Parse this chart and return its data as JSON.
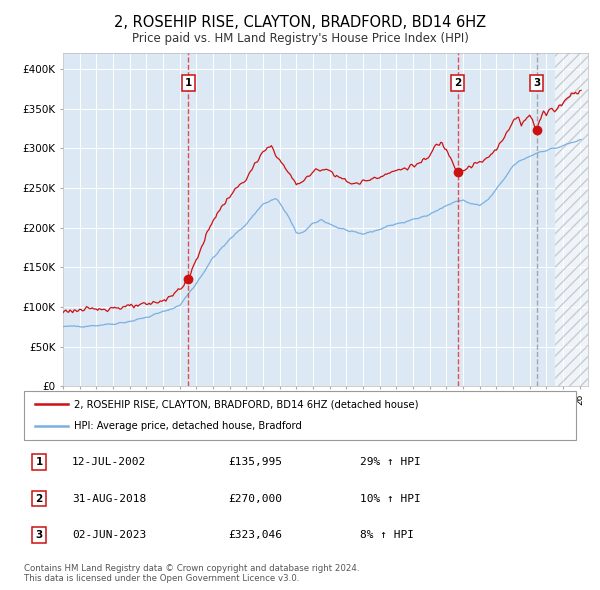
{
  "title": "2, ROSEHIP RISE, CLAYTON, BRADFORD, BD14 6HZ",
  "subtitle": "Price paid vs. HM Land Registry's House Price Index (HPI)",
  "title_fontsize": 10.5,
  "subtitle_fontsize": 8.5,
  "background_color": "#ffffff",
  "chart_bg_color": "#dde8f5",
  "ylim": [
    0,
    420000
  ],
  "yticks": [
    0,
    50000,
    100000,
    150000,
    200000,
    250000,
    300000,
    350000,
    400000
  ],
  "ytick_labels": [
    "£0",
    "£50K",
    "£100K",
    "£150K",
    "£200K",
    "£250K",
    "£300K",
    "£350K",
    "£400K"
  ],
  "xmin": 1995,
  "xmax": 2026.5,
  "sale1_date": 2002.53,
  "sale1_price": 135995,
  "sale1_label": "1",
  "sale1_vline_color": "#dd3333",
  "sale2_date": 2018.67,
  "sale2_price": 270000,
  "sale2_label": "2",
  "sale2_vline_color": "#dd3333",
  "sale3_date": 2023.42,
  "sale3_price": 323046,
  "sale3_label": "3",
  "sale3_vline_color": "#999999",
  "legend_entries": [
    "2, ROSEHIP RISE, CLAYTON, BRADFORD, BD14 6HZ (detached house)",
    "HPI: Average price, detached house, Bradford"
  ],
  "table_rows": [
    [
      "1",
      "12-JUL-2002",
      "£135,995",
      "29% ↑ HPI"
    ],
    [
      "2",
      "31-AUG-2018",
      "£270,000",
      "10% ↑ HPI"
    ],
    [
      "3",
      "02-JUN-2023",
      "£323,046",
      "8% ↑ HPI"
    ]
  ],
  "footer": "Contains HM Land Registry data © Crown copyright and database right 2024.\nThis data is licensed under the Open Government Licence v3.0.",
  "hpi_color": "#7ab0e0",
  "price_color": "#cc1111",
  "marker_color": "#cc1111",
  "hatch_region_start": 2024.5,
  "box_label_color": "#cc1111"
}
